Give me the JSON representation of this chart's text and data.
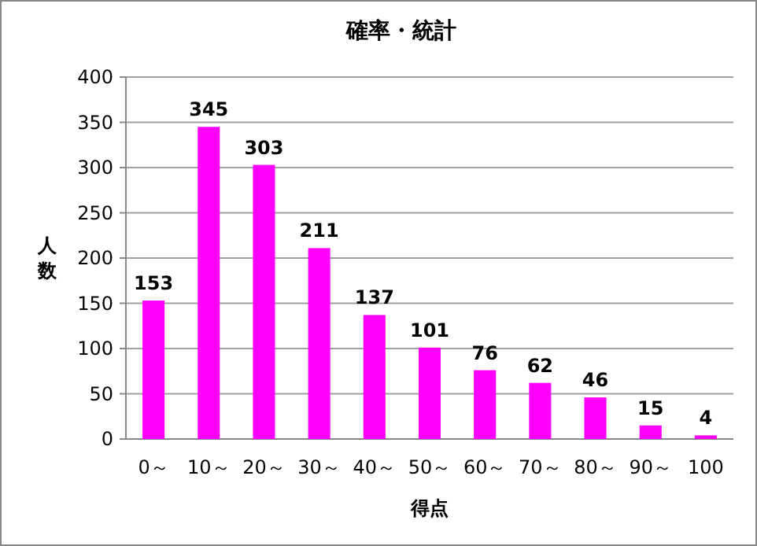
{
  "chart_data": {
    "type": "bar",
    "title": "確率・統計",
    "xlabel": "得点",
    "ylabel": "人数",
    "categories": [
      "0～",
      "10～",
      "20～",
      "30～",
      "40～",
      "50～",
      "60～",
      "70～",
      "80～",
      "90～",
      "100"
    ],
    "values": [
      153,
      345,
      303,
      211,
      137,
      101,
      76,
      62,
      46,
      15,
      4
    ],
    "color": "#ff00ff",
    "ylim": [
      0,
      400
    ],
    "yticks": [
      0,
      50,
      100,
      150,
      200,
      250,
      300,
      350,
      400
    ],
    "grid": "y",
    "data_labels": true
  }
}
